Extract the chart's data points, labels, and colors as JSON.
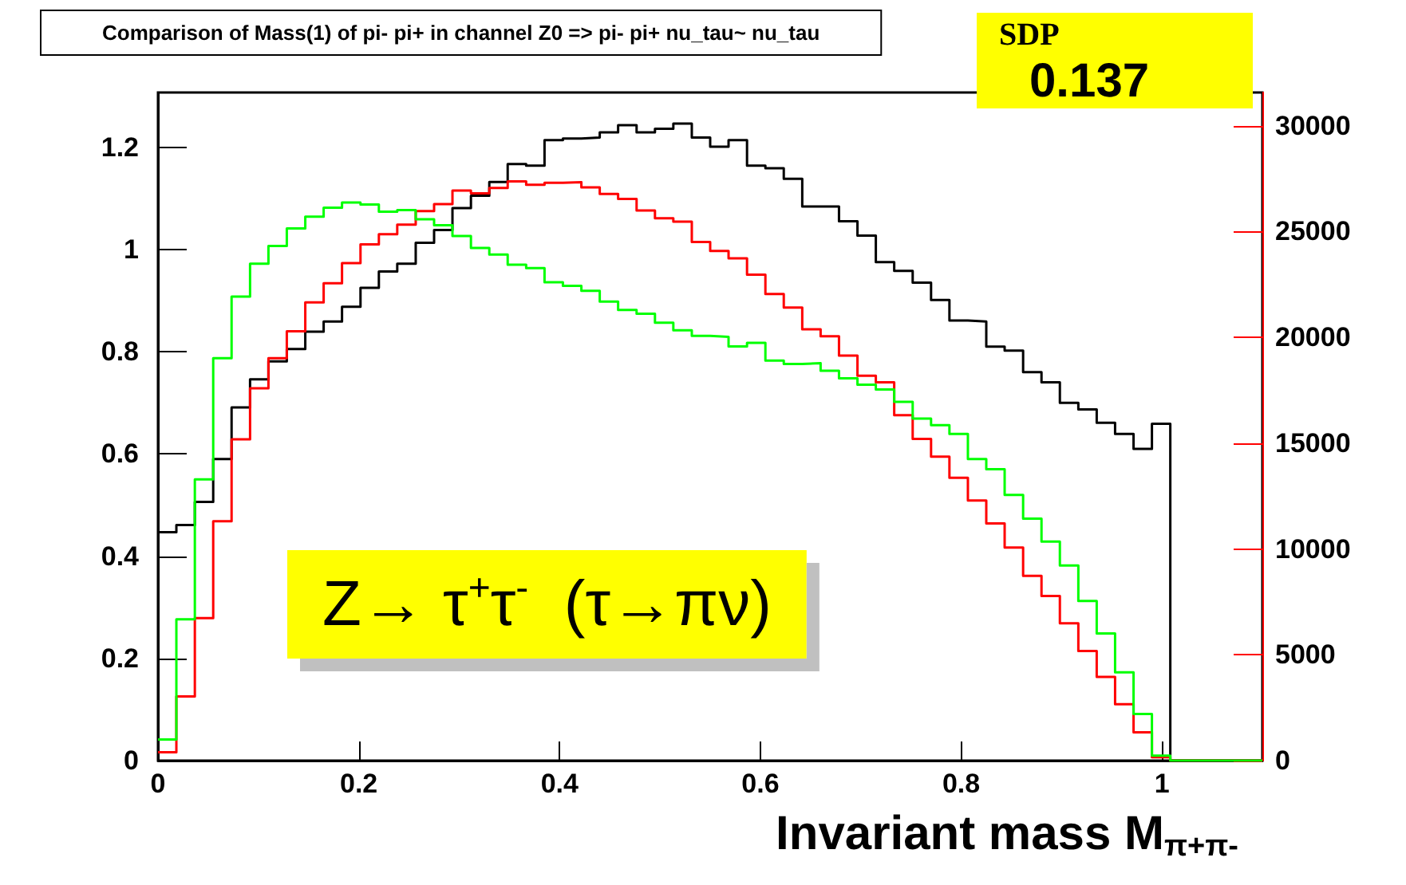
{
  "chart_data": {
    "type": "histogram",
    "title": "Comparison of Mass(1) of pi- pi+ in channel Z0 => pi- pi+ nu_tau~ nu_tau",
    "xlabel": "Invariant mass M$_{π+π-}$",
    "annotations": [
      "SDP",
      "0.137",
      "Z→ τ$^{+}$τ$^{-}$  (τ→πν)"
    ],
    "bins": [
      0,
      0.0183,
      0.0367,
      0.055,
      0.0733,
      0.0917,
      0.11,
      0.1283,
      0.1467,
      0.165,
      0.1833,
      0.2017,
      0.22,
      0.2383,
      0.2567,
      0.275,
      0.2933,
      0.3117,
      0.33,
      0.3483,
      0.3667,
      0.385,
      0.4033,
      0.4217,
      0.44,
      0.4583,
      0.4767,
      0.495,
      0.5133,
      0.5317,
      0.55,
      0.5683,
      0.5867,
      0.605,
      0.6233,
      0.6417,
      0.66,
      0.6783,
      0.6967,
      0.715,
      0.7333,
      0.7517,
      0.77,
      0.7883,
      0.8067,
      0.825,
      0.8433,
      0.8617,
      0.88,
      0.8983,
      0.9167,
      0.935,
      0.9533,
      0.9717,
      0.99,
      1.0083,
      1.0267,
      1.045,
      1.0633,
      1.0817,
      1.1
    ],
    "series": [
      {
        "color": "#000000",
        "values": [
          0.447,
          0.461,
          0.506,
          0.59,
          0.691,
          0.746,
          0.781,
          0.805,
          0.839,
          0.859,
          0.888,
          0.925,
          0.957,
          0.972,
          1.013,
          1.038,
          1.081,
          1.105,
          1.132,
          1.167,
          1.164,
          1.214,
          1.217,
          1.219,
          1.229,
          1.243,
          1.229,
          1.236,
          1.246,
          1.219,
          1.201,
          1.214,
          1.164,
          1.159,
          1.138,
          1.084,
          1.084,
          1.055,
          1.027,
          0.975,
          0.958,
          0.935,
          0.901,
          0.861,
          0.859,
          0.81,
          0.802,
          0.76,
          0.74,
          0.7,
          0.687,
          0.661,
          0.639,
          0.61,
          0.659,
          0,
          0,
          0,
          0,
          0
        ]
      },
      {
        "color": "#ff0000",
        "axis": "y2",
        "values": [
          400,
          3030,
          6730,
          11310,
          15180,
          17590,
          19020,
          20290,
          21650,
          22560,
          23510,
          24390,
          24870,
          25330,
          25970,
          26300,
          26940,
          26800,
          27060,
          27370,
          27210,
          27300,
          27330,
          27090,
          26780,
          26540,
          25990,
          25630,
          25470,
          24510,
          24080,
          23730,
          22960,
          22050,
          21410,
          20380,
          20050,
          19140,
          18190,
          17880,
          16320,
          15200,
          14360,
          13360,
          12290,
          11210,
          10070,
          8730,
          7780,
          6490,
          5180,
          3960,
          2670,
          1340,
          160,
          0,
          0,
          0,
          0,
          0
        ]
      },
      {
        "color": "#00ff00",
        "axis": "y2",
        "values": [
          1000,
          6680,
          13290,
          19020,
          21930,
          23480,
          24320,
          25150,
          25700,
          26130,
          26370,
          26280,
          25940,
          26010,
          25580,
          25300,
          24790,
          24220,
          23910,
          23430,
          23270,
          22600,
          22430,
          22200,
          21690,
          21290,
          21120,
          20690,
          20330,
          20070,
          20020,
          19570,
          19740,
          18900,
          18740,
          18780,
          18420,
          18060,
          17760,
          17540,
          16950,
          16160,
          15850,
          15440,
          14250,
          13770,
          12550,
          11430,
          10350,
          9220,
          7540,
          6010,
          4170,
          2200,
          240,
          0,
          0,
          0,
          0,
          0
        ]
      }
    ],
    "xlim": [
      0,
      1.1
    ],
    "xticks": [
      0,
      0.2,
      0.4,
      0.6,
      0.8,
      1
    ],
    "ylim": [
      0,
      1.307
    ],
    "yticks": [
      0,
      0.2,
      0.4,
      0.6,
      0.8,
      1,
      1.2
    ],
    "y2lim": [
      0,
      31570
    ],
    "y2ticks": [
      0,
      5000,
      10000,
      15000,
      20000,
      25000,
      30000
    ]
  }
}
